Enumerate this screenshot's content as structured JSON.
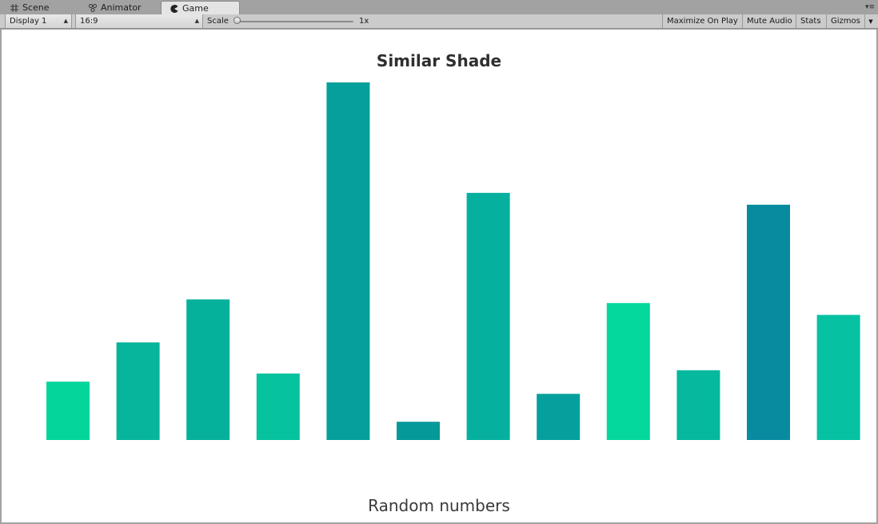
{
  "tabs": [
    {
      "label": "Scene",
      "icon": "grid-icon",
      "active": false
    },
    {
      "label": "Animator",
      "icon": "animator-icon",
      "active": false
    },
    {
      "label": "Game",
      "icon": "pacman-icon",
      "active": true
    }
  ],
  "toolbar": {
    "display": "Display 1",
    "aspect": "16:9",
    "scale_label": "Scale",
    "scale_value": "1x",
    "maximize_on_play": "Maximize On Play",
    "mute_audio": "Mute Audio",
    "stats": "Stats",
    "gizmos": "Gizmos"
  },
  "chart_data": {
    "type": "bar",
    "title": "Similar Shade",
    "xlabel": "Random numbers",
    "ylabel": "",
    "grid": false,
    "ylim": [
      0,
      100
    ],
    "values": [
      16.3,
      27.3,
      39.3,
      18.6,
      100,
      5.1,
      69.1,
      12.9,
      38.3,
      19.5,
      65.8,
      35.0
    ],
    "colors": [
      "#04d59b",
      "#06b59c",
      "#06b19c",
      "#06c29d",
      "#059f9c",
      "#05999a",
      "#06b09f",
      "#05a09d",
      "#05d89c",
      "#06b89d",
      "#088a9f",
      "#06c1a2"
    ]
  }
}
